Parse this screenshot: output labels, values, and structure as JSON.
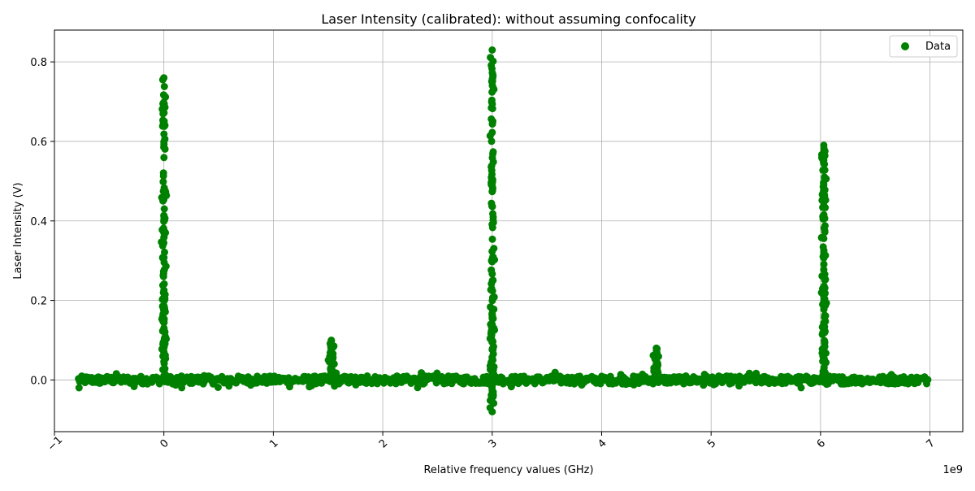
{
  "chart_data": {
    "type": "scatter",
    "title": "Laser Intensity (calibrated): without assuming confocality",
    "xlabel": "Relative frequency values (GHz)",
    "ylabel": "Laser Intensity (V)",
    "x_offset_label": "1e9",
    "xlim": [
      -1.0,
      7.3
    ],
    "ylim": [
      -0.13,
      0.88
    ],
    "x_ticks": [
      -1,
      0,
      1,
      2,
      3,
      4,
      5,
      6,
      7
    ],
    "y_ticks": [
      0.0,
      0.2,
      0.4,
      0.6,
      0.8
    ],
    "x_tick_labels": [
      "−1",
      "0",
      "1",
      "2",
      "3",
      "4",
      "5",
      "6",
      "7"
    ],
    "y_tick_labels": [
      "0.0",
      "0.2",
      "0.4",
      "0.6",
      "0.8"
    ],
    "grid": true,
    "legend_position": "upper right",
    "series": [
      {
        "name": "Data",
        "color": "#008000",
        "x_range": [
          -0.78,
          6.98
        ],
        "baseline_y": 0.0,
        "peaks": [
          {
            "x": 0.0,
            "y": 0.76
          },
          {
            "x": 1.53,
            "y": 0.1
          },
          {
            "x": 3.0,
            "y": 0.83,
            "y_min": -0.08
          },
          {
            "x": 4.5,
            "y": 0.08
          },
          {
            "x": 6.03,
            "y": 0.59
          }
        ]
      }
    ]
  }
}
